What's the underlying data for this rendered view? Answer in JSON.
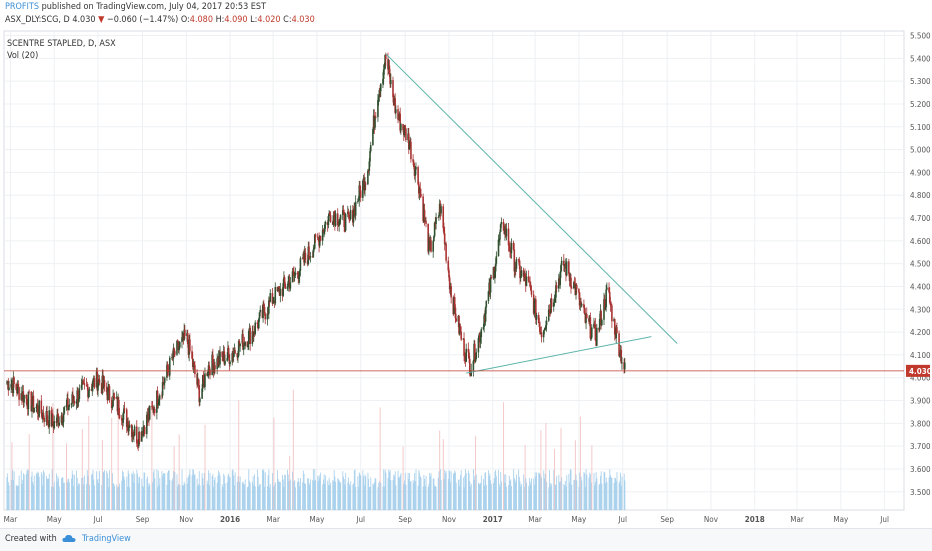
{
  "header": {
    "author": "PROFITS",
    "published": "published on TradingView.com, July 04, 2017 20:53 EST",
    "symbol": "ASX_DLY:SCG, D",
    "last": "4.030",
    "change_arrow": "▼",
    "change": "−0.060 (−1.47%)",
    "o_label": "O:",
    "o_value": "4.080",
    "h_label": "H:",
    "h_value": "4.090",
    "l_label": "L:",
    "l_value": "4.020",
    "c_label": "C:",
    "c_value": "4.030"
  },
  "legend": {
    "title": "SCENTRE STAPLED, D, ASX",
    "volume": "Vol (20)"
  },
  "footer": {
    "created": "Created with",
    "brand": "TradingView"
  },
  "colors": {
    "up": "#2f4f2f",
    "down": "#a83232",
    "trendline": "#5bb4a8",
    "price_line": "#c0392b",
    "volume": "#9fcbea",
    "volume_spike": "#f0b8b8",
    "grid": "#eef0f3"
  },
  "chart_data": {
    "type": "candlestick",
    "title": "SCENTRE STAPLED, D, ASX",
    "ylim": [
      3.42,
      5.52
    ],
    "y_ticks": [
      "5.500",
      "5.400",
      "5.300",
      "5.200",
      "5.100",
      "5.000",
      "4.900",
      "4.800",
      "4.700",
      "4.600",
      "4.500",
      "4.400",
      "4.300",
      "4.200",
      "4.100",
      "4.000",
      "3.900",
      "3.800",
      "3.700",
      "3.600",
      "3.500"
    ],
    "last_price": "4.030",
    "x_ticks": [
      "Mar",
      "May",
      "Jul",
      "Sep",
      "Nov",
      "2016",
      "Mar",
      "May",
      "Jul",
      "Sep",
      "Nov",
      "2017",
      "Mar",
      "May",
      "Jul",
      "Sep",
      "Nov",
      "2018",
      "Mar",
      "May",
      "Jul"
    ],
    "price_path": [
      [
        "2015-03-01",
        3.98
      ],
      [
        "2015-04-01",
        3.88
      ],
      [
        "2015-05-01",
        3.8
      ],
      [
        "2015-06-01",
        3.92
      ],
      [
        "2015-07-01",
        3.99
      ],
      [
        "2015-08-01",
        3.86
      ],
      [
        "2015-08-25",
        3.74
      ],
      [
        "2015-09-15",
        3.86
      ],
      [
        "2015-10-15",
        4.1
      ],
      [
        "2015-11-01",
        4.18
      ],
      [
        "2015-11-20",
        3.92
      ],
      [
        "2015-12-01",
        4.05
      ],
      [
        "2016-01-01",
        4.1
      ],
      [
        "2016-02-01",
        4.2
      ],
      [
        "2016-03-01",
        4.35
      ],
      [
        "2016-04-01",
        4.45
      ],
      [
        "2016-05-01",
        4.6
      ],
      [
        "2016-05-20",
        4.72
      ],
      [
        "2016-06-15",
        4.68
      ],
      [
        "2016-07-10",
        4.9
      ],
      [
        "2016-07-25",
        5.25
      ],
      [
        "2016-08-05",
        5.4
      ],
      [
        "2016-08-20",
        5.15
      ],
      [
        "2016-09-05",
        5.05
      ],
      [
        "2016-09-20",
        4.85
      ],
      [
        "2016-10-05",
        4.55
      ],
      [
        "2016-10-20",
        4.75
      ],
      [
        "2016-11-05",
        4.35
      ],
      [
        "2016-11-20",
        4.15
      ],
      [
        "2016-12-01",
        4.05
      ],
      [
        "2016-12-15",
        4.2
      ],
      [
        "2017-01-01",
        4.45
      ],
      [
        "2017-01-15",
        4.68
      ],
      [
        "2017-02-01",
        4.5
      ],
      [
        "2017-02-20",
        4.4
      ],
      [
        "2017-03-10",
        4.2
      ],
      [
        "2017-03-25",
        4.35
      ],
      [
        "2017-04-10",
        4.5
      ],
      [
        "2017-04-25",
        4.4
      ],
      [
        "2017-05-10",
        4.25
      ],
      [
        "2017-05-25",
        4.18
      ],
      [
        "2017-06-10",
        4.38
      ],
      [
        "2017-06-20",
        4.22
      ],
      [
        "2017-07-04",
        4.03
      ]
    ],
    "trendlines": [
      {
        "from": [
          "2016-08-05",
          5.42
        ],
        "to": [
          "2017-09-15",
          4.15
        ]
      },
      {
        "from": [
          "2016-11-25",
          4.02
        ],
        "to": [
          "2017-08-10",
          4.18
        ]
      }
    ],
    "volume_series_name": "Vol (20)"
  }
}
